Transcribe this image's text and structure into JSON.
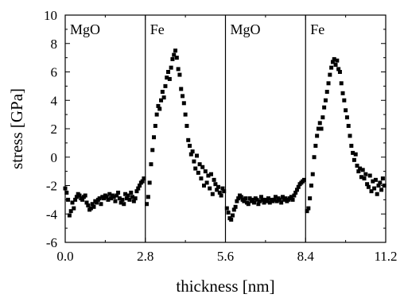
{
  "chart_data": {
    "type": "scatter",
    "xlabel": "thickness [nm]",
    "ylabel": "stress [GPa]",
    "xlim": [
      0.0,
      11.2
    ],
    "ylim": [
      -6,
      10
    ],
    "x_ticks": [
      "0.0",
      "2.8",
      "5.6",
      "8.4",
      "11.2"
    ],
    "y_ticks": [
      "-6",
      "-4",
      "-2",
      "0",
      "2",
      "4",
      "6",
      "8",
      "10"
    ],
    "layer_boundaries": [
      2.8,
      5.6,
      8.4
    ],
    "layer_labels": [
      "MgO",
      "Fe",
      "MgO",
      "Fe"
    ],
    "grid": false,
    "legend": "none",
    "marker_color": "#000000",
    "series": [
      {
        "x": [
          0.0,
          0.05,
          0.1,
          0.15,
          0.2,
          0.25,
          0.3,
          0.35,
          0.4,
          0.45,
          0.5,
          0.55,
          0.6,
          0.65,
          0.7,
          0.75,
          0.8,
          0.85,
          0.9,
          0.95,
          1.0,
          1.05,
          1.1,
          1.15,
          1.2,
          1.25,
          1.3,
          1.35,
          1.4,
          1.45,
          1.5,
          1.55,
          1.6,
          1.65,
          1.7,
          1.75,
          1.8,
          1.85,
          1.9,
          1.95,
          2.0,
          2.05,
          2.1,
          2.15,
          2.2,
          2.25,
          2.3,
          2.35,
          2.4,
          2.45,
          2.5,
          2.55,
          2.6,
          2.65,
          2.7,
          2.75,
          2.85,
          2.9,
          2.95,
          3.0,
          3.05,
          3.1,
          3.15,
          3.2,
          3.25,
          3.3,
          3.35,
          3.4,
          3.45,
          3.5,
          3.55,
          3.6,
          3.65,
          3.7,
          3.75,
          3.8,
          3.85,
          3.9,
          3.95,
          4.0,
          4.05,
          4.1,
          4.15,
          4.2,
          4.25,
          4.3,
          4.35,
          4.4,
          4.45,
          4.5,
          4.55,
          4.6,
          4.65,
          4.7,
          4.75,
          4.8,
          4.85,
          4.9,
          4.95,
          5.0,
          5.05,
          5.1,
          5.15,
          5.2,
          5.25,
          5.3,
          5.35,
          5.4,
          5.45,
          5.5,
          5.55,
          5.65,
          5.7,
          5.75,
          5.8,
          5.85,
          5.9,
          5.95,
          6.0,
          6.05,
          6.1,
          6.15,
          6.2,
          6.25,
          6.3,
          6.35,
          6.4,
          6.45,
          6.5,
          6.55,
          6.6,
          6.65,
          6.7,
          6.75,
          6.8,
          6.85,
          6.9,
          6.95,
          7.0,
          7.05,
          7.1,
          7.15,
          7.2,
          7.25,
          7.3,
          7.35,
          7.4,
          7.45,
          7.5,
          7.55,
          7.6,
          7.65,
          7.7,
          7.75,
          7.8,
          7.85,
          7.9,
          7.95,
          8.0,
          8.05,
          8.1,
          8.15,
          8.2,
          8.25,
          8.3,
          8.35,
          8.45,
          8.5,
          8.55,
          8.6,
          8.65,
          8.7,
          8.75,
          8.8,
          8.85,
          8.9,
          8.95,
          9.0,
          9.05,
          9.1,
          9.15,
          9.2,
          9.25,
          9.3,
          9.35,
          9.4,
          9.45,
          9.5,
          9.55,
          9.6,
          9.65,
          9.7,
          9.75,
          9.8,
          9.85,
          9.9,
          9.95,
          10.0,
          10.05,
          10.1,
          10.15,
          10.2,
          10.25,
          10.3,
          10.35,
          10.4,
          10.45,
          10.5,
          10.55,
          10.6,
          10.65,
          10.7,
          10.75,
          10.8,
          10.85,
          10.9,
          10.95,
          11.0,
          11.05,
          11.1,
          11.15
        ],
        "y": [
          -2.2,
          -2.5,
          -3.0,
          -4.1,
          -3.8,
          -3.2,
          -3.6,
          -3.0,
          -2.8,
          -2.6,
          -2.7,
          -2.9,
          -3.0,
          -2.8,
          -2.7,
          -3.2,
          -3.4,
          -3.7,
          -3.6,
          -3.3,
          -3.5,
          -3.1,
          -3.2,
          -3.0,
          -2.9,
          -3.3,
          -2.8,
          -2.9,
          -2.7,
          -2.8,
          -3.0,
          -2.6,
          -2.9,
          -2.7,
          -2.8,
          -3.1,
          -2.7,
          -2.5,
          -2.9,
          -3.2,
          -3.0,
          -3.3,
          -2.6,
          -2.9,
          -2.7,
          -3.0,
          -2.5,
          -2.8,
          -3.1,
          -2.9,
          -2.4,
          -2.2,
          -2.0,
          -1.8,
          -1.7,
          -1.5,
          -3.3,
          -2.8,
          -1.8,
          -0.5,
          0.5,
          1.4,
          2.2,
          3.0,
          3.6,
          3.4,
          4.0,
          4.6,
          4.2,
          5.0,
          5.6,
          6.0,
          5.5,
          6.3,
          6.9,
          7.2,
          7.5,
          7.0,
          6.2,
          5.8,
          4.8,
          4.3,
          3.8,
          3.0,
          2.2,
          1.2,
          0.8,
          0.2,
          0.4,
          -0.3,
          -0.8,
          0.1,
          -1.1,
          -0.5,
          -1.5,
          -0.7,
          -2.0,
          -1.0,
          -1.8,
          -1.3,
          -2.2,
          -1.2,
          -2.6,
          -1.6,
          -1.9,
          -2.3,
          -2.1,
          -2.5,
          -2.7,
          -2.2,
          -2.4,
          -3.6,
          -3.9,
          -4.3,
          -4.4,
          -4.1,
          -3.7,
          -3.5,
          -3.1,
          -2.9,
          -2.7,
          -2.8,
          -3.0,
          -3.1,
          -2.9,
          -3.2,
          -3.3,
          -2.9,
          -3.1,
          -3.0,
          -3.2,
          -2.9,
          -3.0,
          -3.3,
          -3.1,
          -2.8,
          -3.0,
          -3.2,
          -3.0,
          -3.1,
          -2.9,
          -3.2,
          -3.0,
          -3.1,
          -3.0,
          -2.8,
          -3.1,
          -2.9,
          -3.0,
          -3.2,
          -2.8,
          -3.0,
          -2.9,
          -3.1,
          -3.0,
          -2.9,
          -2.8,
          -3.0,
          -2.7,
          -2.5,
          -2.3,
          -2.1,
          -1.9,
          -1.8,
          -1.7,
          -1.6,
          -3.8,
          -3.6,
          -2.9,
          -2.0,
          -1.2,
          0.0,
          0.8,
          1.5,
          2.0,
          2.4,
          2.0,
          2.8,
          3.5,
          4.0,
          4.6,
          5.2,
          5.8,
          6.3,
          6.7,
          6.9,
          6.5,
          6.8,
          6.2,
          6.0,
          5.2,
          4.5,
          4.0,
          3.3,
          2.8,
          2.2,
          1.5,
          0.8,
          0.3,
          -0.2,
          0.2,
          -0.6,
          -1.0,
          -0.8,
          -1.4,
          -0.9,
          -1.5,
          -1.2,
          -1.9,
          -2.1,
          -1.3,
          -2.4,
          -1.7,
          -2.2,
          -1.6,
          -2.6,
          -2.0,
          -1.8,
          -2.3,
          -1.5,
          -2.0
        ]
      }
    ]
  }
}
